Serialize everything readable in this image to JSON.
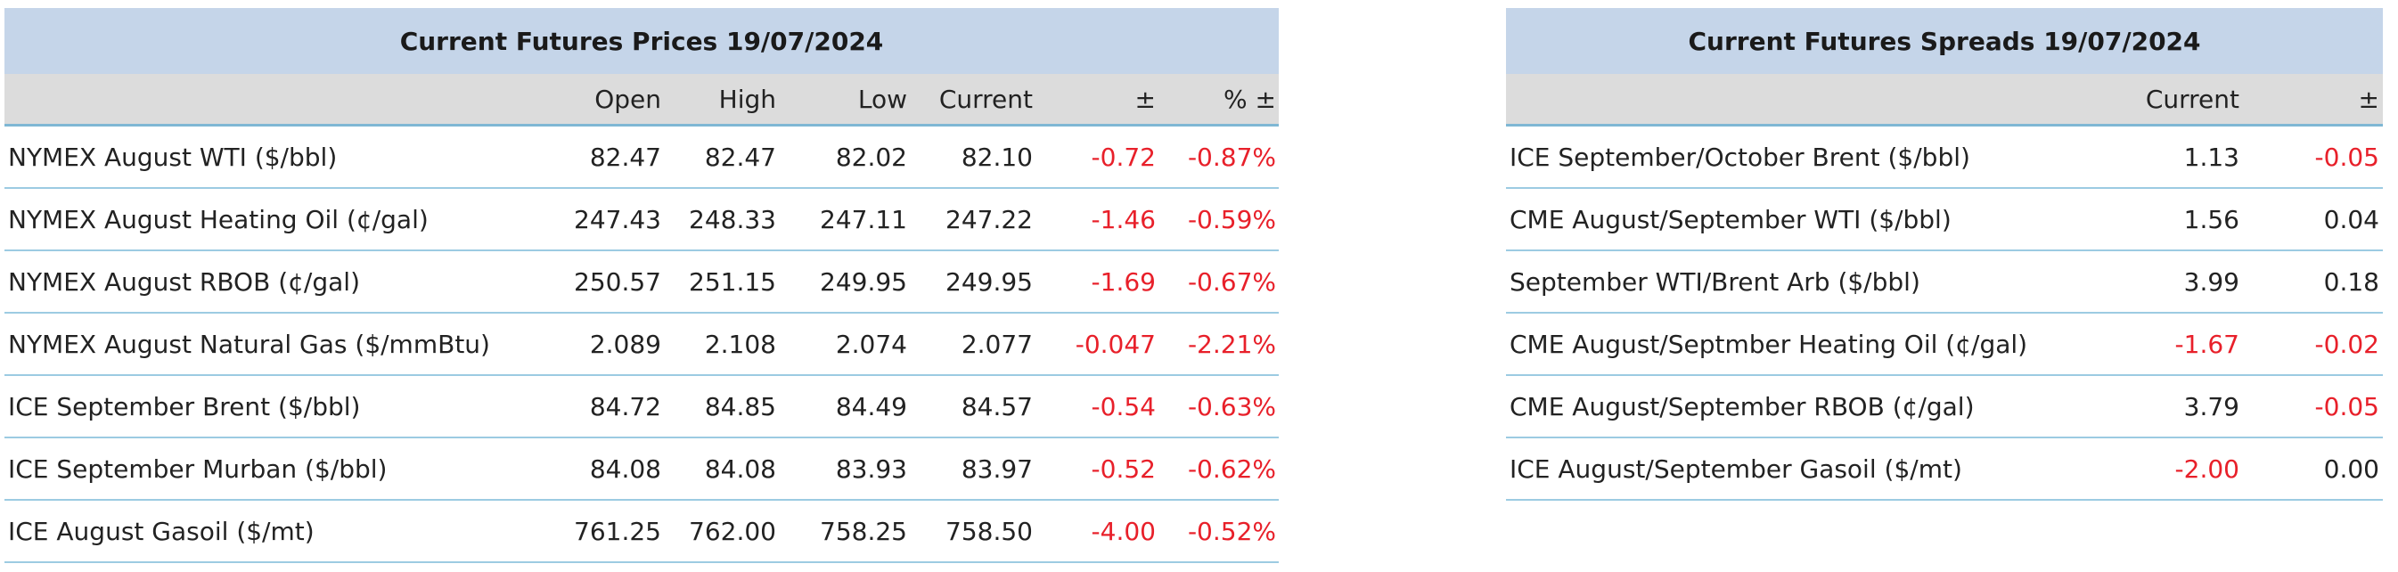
{
  "prices": {
    "title": "Current Futures Prices 19/07/2024",
    "columns": [
      "Open",
      "High",
      "Low",
      "Current",
      "±",
      "% ±"
    ],
    "rows": [
      {
        "label": "NYMEX August WTI ($/bbl)",
        "values": [
          "82.47",
          "82.47",
          "82.02",
          "82.10",
          "-0.72",
          "-0.87%"
        ]
      },
      {
        "label": "NYMEX August Heating Oil (¢/gal)",
        "values": [
          "247.43",
          "248.33",
          "247.11",
          "247.22",
          "-1.46",
          "-0.59%"
        ]
      },
      {
        "label": "NYMEX August RBOB (¢/gal)",
        "values": [
          "250.57",
          "251.15",
          "249.95",
          "249.95",
          "-1.69",
          "-0.67%"
        ]
      },
      {
        "label": "NYMEX August Natural Gas ($/mmBtu)",
        "values": [
          "2.089",
          "2.108",
          "2.074",
          "2.077",
          "-0.047",
          "-2.21%"
        ]
      },
      {
        "label": "ICE September Brent ($/bbl)",
        "values": [
          "84.72",
          "84.85",
          "84.49",
          "84.57",
          "-0.54",
          "-0.63%"
        ]
      },
      {
        "label": "ICE September Murban ($/bbl)",
        "values": [
          "84.08",
          "84.08",
          "83.93",
          "83.97",
          "-0.52",
          "-0.62%"
        ]
      },
      {
        "label": "ICE August Gasoil ($/mt)",
        "values": [
          "761.25",
          "762.00",
          "758.25",
          "758.50",
          "-4.00",
          "-0.52%"
        ]
      }
    ]
  },
  "spreads": {
    "title": "Current Futures Spreads 19/07/2024",
    "columns": [
      "Current",
      "±"
    ],
    "rows": [
      {
        "label": "ICE September/October Brent ($/bbl)",
        "values": [
          "1.13",
          "-0.05"
        ]
      },
      {
        "label": "CME August/September WTI ($/bbl)",
        "values": [
          "1.56",
          "0.04"
        ]
      },
      {
        "label": "September WTI/Brent Arb ($/bbl)",
        "values": [
          "3.99",
          "0.18"
        ]
      },
      {
        "label": "CME August/Septmber Heating Oil (¢/gal)",
        "values": [
          "-1.67",
          "-0.02"
        ]
      },
      {
        "label": "CME August/September RBOB (¢/gal)",
        "values": [
          "3.79",
          "-0.05"
        ]
      },
      {
        "label": "ICE August/September Gasoil ($/mt)",
        "values": [
          "-2.00",
          "0.00"
        ]
      }
    ]
  }
}
